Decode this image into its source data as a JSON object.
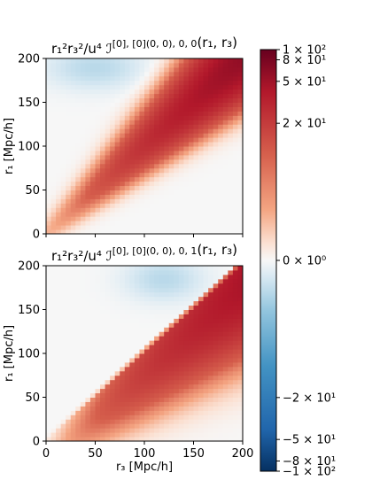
{
  "chart_data": [
    {
      "type": "heatmap",
      "title": "r₁²r₃²/u⁴ ℐ^{[0],[0]}_{(0,0),0,0}(r₁, r₃)",
      "title_parts": {
        "main": "r₁²r₃²/u⁴ ℐ",
        "sup": "[0], [0]",
        "sub": "(0, 0), 0, 0",
        "args": "(r₁, r₃)"
      },
      "xlabel": "",
      "ylabel": "r₁ [Mpc/h]",
      "xlim": [
        0,
        200
      ],
      "ylim": [
        0,
        200
      ],
      "xticks": [
        "0",
        "50",
        "100",
        "150",
        "200"
      ],
      "xticks_show_labels": false,
      "yticks": [
        "0",
        "50",
        "100",
        "150",
        "200"
      ],
      "colormap": "RdBu_r",
      "pattern": "positive ridge along r1 = r3, amplitude increasing with r, slightly negative off-diagonal at small r1 and large r3",
      "peak_value_approx": 60
    },
    {
      "type": "heatmap",
      "title": "r₁²r₃²/u⁴ ℐ^{[0],[0]}_{(0,0),0,1}(r₁, r₃)",
      "title_parts": {
        "main": "r₁²r₃²/u⁴ ℐ",
        "sup": "[0], [0]",
        "sub": "(0, 0), 0, 1",
        "args": "(r₁, r₃)"
      },
      "xlabel": "r₃ [Mpc/h]",
      "ylabel": "r₁ [Mpc/h]",
      "xlim": [
        0,
        200
      ],
      "ylim": [
        0,
        200
      ],
      "xticks": [
        "0",
        "50",
        "100",
        "150",
        "200"
      ],
      "xticks_show_labels": true,
      "yticks": [
        "0",
        "50",
        "100",
        "150",
        "200"
      ],
      "colormap": "RdBu_r",
      "pattern": "broad positive region below the diagonal (r1 < r3), growing with r3, slightly negative near top-middle",
      "peak_value_approx": 45
    }
  ],
  "colorbar": {
    "colormap": "RdBu_r",
    "norm": "symlog",
    "range": [
      -100,
      100
    ],
    "tick_labels": [
      "1 × 10²",
      "8 × 10¹",
      "5 × 10¹",
      "2 × 10¹",
      "0 × 10⁰",
      "−2 × 10¹",
      "−5 × 10¹",
      "−8 × 10¹",
      "−1 × 10²"
    ],
    "tick_values": [
      100,
      80,
      50,
      20,
      0,
      -20,
      -50,
      -80,
      -100
    ]
  }
}
